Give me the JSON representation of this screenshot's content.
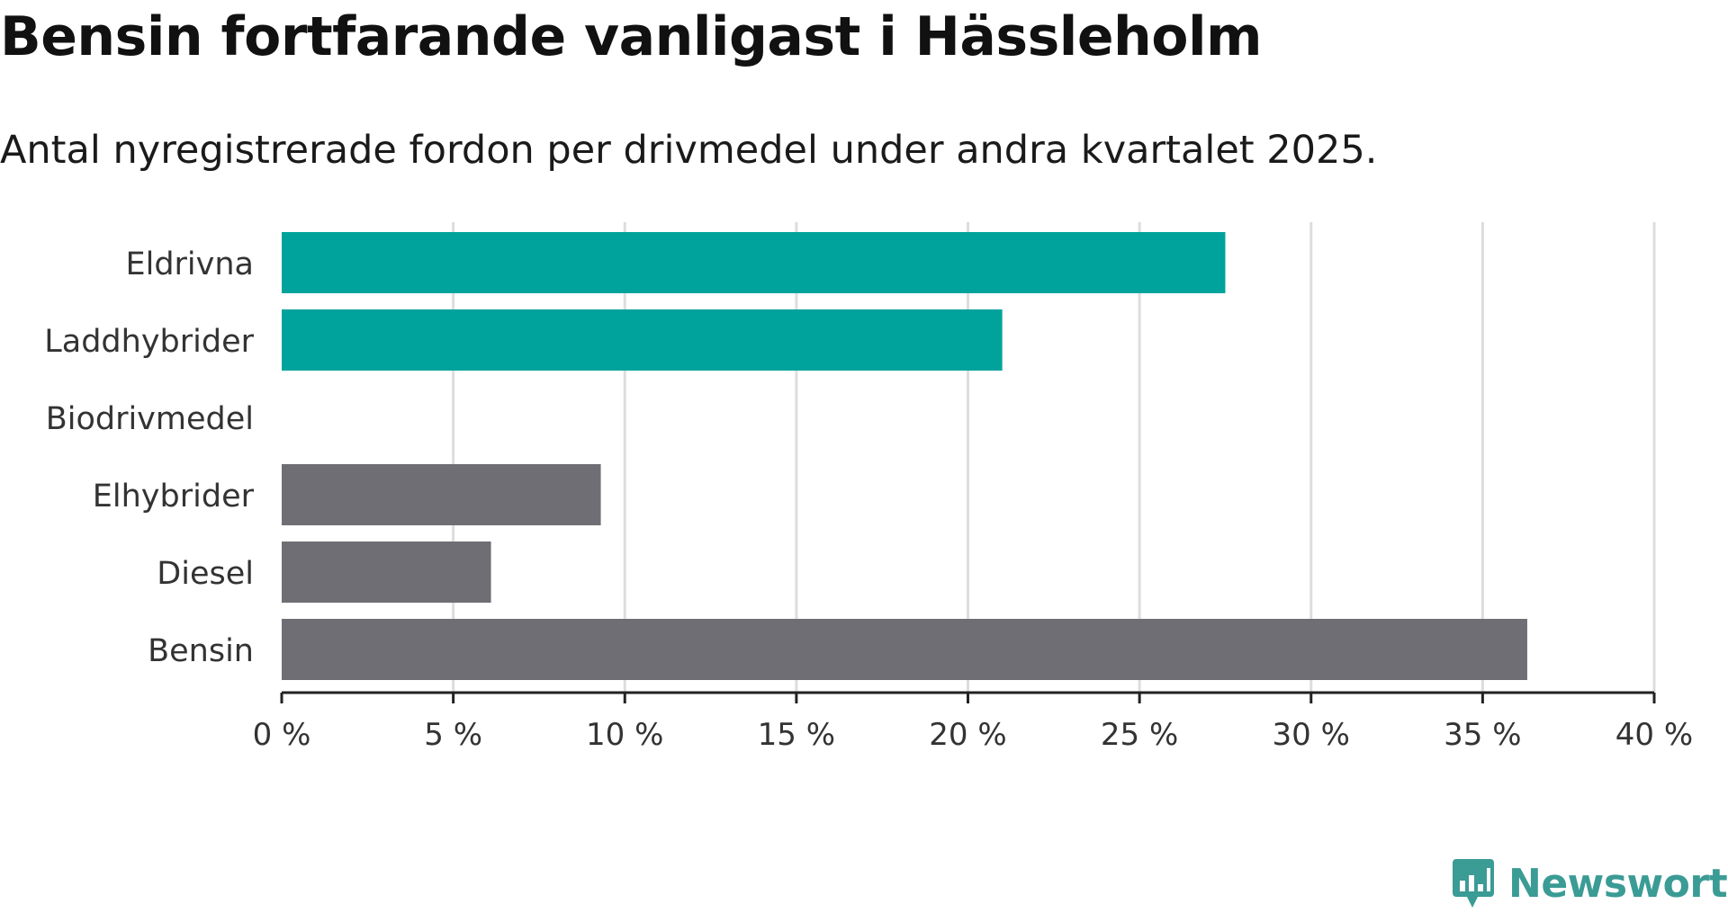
{
  "title": "Bensin fortfarande vanligast i Hässleholm",
  "subtitle": "Antal nyregistrerade fordon per drivmedel under andra kvartalet 2025.",
  "brand": {
    "name": "Newsworthy",
    "color": "#3b9b95",
    "icon": "bar-chart-speech-bubble-icon"
  },
  "colors": {
    "highlight": "#00a39b",
    "muted": "#6e6e74",
    "grid": "#dddddd",
    "axis": "#222222",
    "text": "#333333"
  },
  "chart_data": {
    "type": "bar",
    "orientation": "horizontal",
    "categories": [
      "Eldrivna",
      "Laddhybrider",
      "Biodrivmedel",
      "Elhybrider",
      "Diesel",
      "Bensin"
    ],
    "values": [
      27.5,
      21.0,
      0,
      9.3,
      6.1,
      36.3
    ],
    "highlighted": [
      true,
      true,
      false,
      false,
      false,
      false
    ],
    "xlim": [
      0,
      40
    ],
    "xticks": [
      0,
      5,
      10,
      15,
      20,
      25,
      30,
      35,
      40
    ],
    "xtick_labels": [
      "0 %",
      "5 %",
      "10 %",
      "15 %",
      "20 %",
      "25 %",
      "30 %",
      "35 %",
      "40 %"
    ],
    "xlabel": "",
    "ylabel": "",
    "grid": "vertical"
  }
}
